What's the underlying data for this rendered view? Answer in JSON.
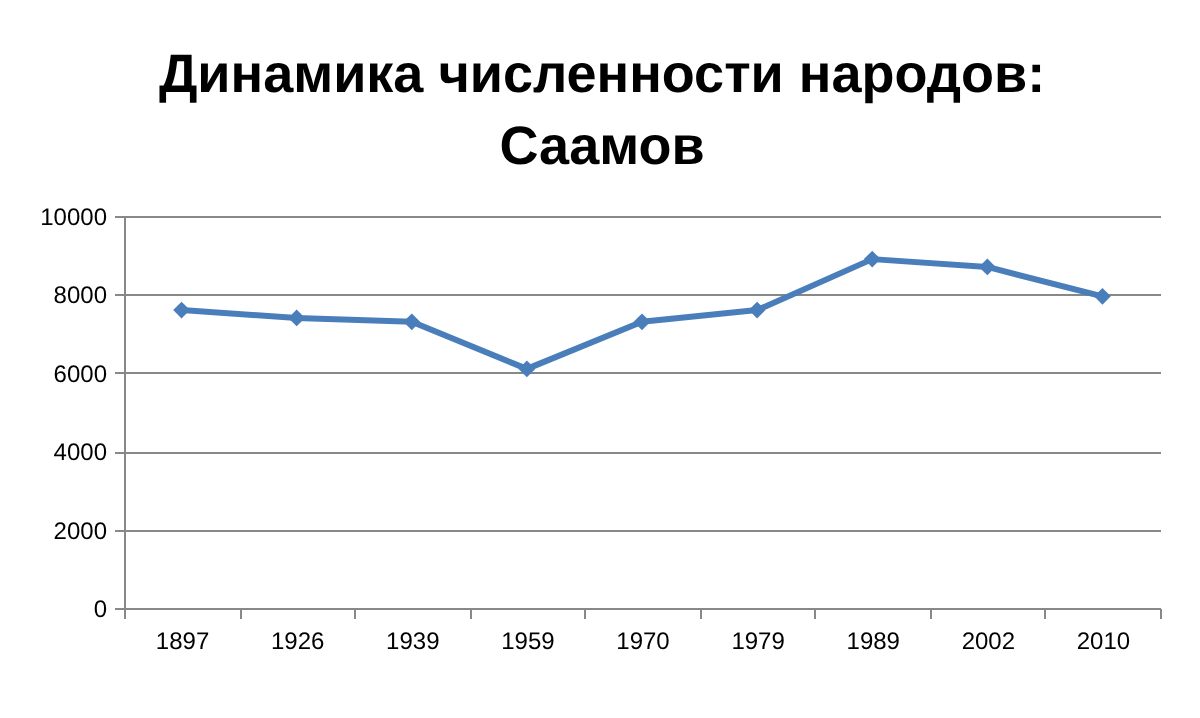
{
  "chart_data": {
    "type": "line",
    "title": "Динамика численности народов: Саамов",
    "categories": [
      "1897",
      "1926",
      "1939",
      "1959",
      "1970",
      "1979",
      "1989",
      "2002",
      "2010"
    ],
    "series": [
      {
        "color": "#4a7ebb",
        "values": [
          7600,
          7400,
          7300,
          6100,
          7300,
          7600,
          8900,
          8700,
          7950
        ]
      }
    ],
    "ylim": [
      0,
      10000
    ],
    "yticks": [
      0,
      2000,
      4000,
      6000,
      8000,
      10000
    ],
    "grid": "y",
    "marker": "diamond",
    "line_style": "solid"
  }
}
